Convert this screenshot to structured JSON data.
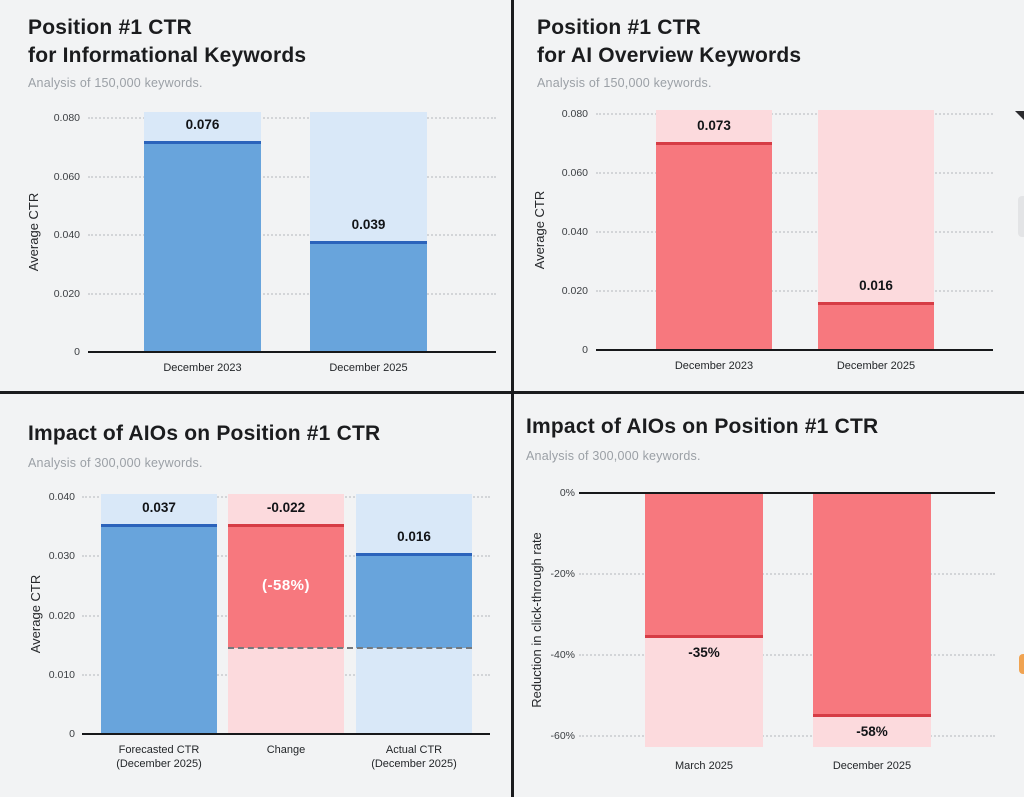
{
  "page": {
    "background": "#f2f3f4",
    "divider_color": "#1a1b1d"
  },
  "palette": {
    "blue_fill": "#68a4dc",
    "blue_dark": "#2b63bb",
    "blue_light": "#d9e8f8",
    "red_fill": "#f7787e",
    "red_dark": "#d63c45",
    "red_light": "#fcdadd",
    "grid": "#d3d5d8",
    "dash": "#75797d",
    "axis": "#17181a"
  },
  "edge_elements": {
    "arrow_icon_color": "#2b2b2e",
    "gray_tab_color": "#e3e4e6",
    "orange_fragment_color": "#f0a351"
  },
  "chart_data": [
    {
      "id": "informational-ctr",
      "type": "bar",
      "title": "Position #1 CTR\nfor Informational Keywords",
      "subtitle": "Analysis of 150,000 keywords.",
      "ylabel": "Average CTR",
      "yticks": [
        "0.080",
        "0.060",
        "0.040",
        "0.020",
        "0"
      ],
      "ytick_values": [
        0.08,
        0.06,
        0.04,
        0.02,
        0
      ],
      "ylim": [
        0,
        0.082
      ],
      "grid": "dotted",
      "legend": "none",
      "categories": [
        "December 2023",
        "December 2025"
      ],
      "values": [
        0.076,
        0.039
      ],
      "labels": [
        "0.076",
        "0.039"
      ],
      "bar_draw": [
        0.072,
        0.038
      ],
      "color": "blue"
    },
    {
      "id": "ai-overview-ctr",
      "type": "bar",
      "title": "Position #1 CTR\nfor AI Overview Keywords",
      "subtitle": "Analysis of 150,000 keywords.",
      "ylabel": "Average CTR",
      "yticks": [
        "0.080",
        "0.060",
        "0.040",
        "0.020",
        "0"
      ],
      "ytick_values": [
        0.08,
        0.06,
        0.04,
        0.02,
        0
      ],
      "ylim": [
        0,
        0.082
      ],
      "grid": "dotted",
      "legend": "none",
      "categories": [
        "December 2023",
        "December 2025"
      ],
      "values": [
        0.073,
        0.016
      ],
      "labels": [
        "0.073",
        "0.016"
      ],
      "bar_draw": [
        0.0705,
        0.0163
      ],
      "color": "red"
    },
    {
      "id": "aio-impact-waterfall",
      "type": "waterfall",
      "title": "Impact of AIOs on Position #1 CTR",
      "subtitle": "Analysis of 300,000 keywords.",
      "ylabel": "Average CTR",
      "yticks": [
        "0.040",
        "0.030",
        "0.020",
        "0.010",
        "0"
      ],
      "ytick_values": [
        0.04,
        0.03,
        0.02,
        0.01,
        0
      ],
      "ylim": [
        0,
        0.0405
      ],
      "grid": "dotted",
      "legend": "none",
      "categories": [
        "Forecasted CTR\n(December 2025)",
        "Change",
        "Actual CTR\n(December 2025)"
      ],
      "values": [
        0.037,
        -0.022,
        0.016
      ],
      "labels": [
        "0.037",
        "-0.022",
        "0.016"
      ],
      "inner_label": "(-58%)",
      "baseline_dash": 0.0145,
      "bars": [
        {
          "from": 0,
          "to": 0.0355,
          "color": "blue"
        },
        {
          "from": 0.0145,
          "to": 0.0355,
          "color": "red"
        },
        {
          "from": 0.0145,
          "to": 0.0305,
          "color": "blue"
        }
      ]
    },
    {
      "id": "aio-impact-reduction",
      "type": "negative-bar",
      "title": "Impact of AIOs on Position #1 CTR",
      "subtitle": "Analysis of 300,000 keywords.",
      "ylabel": "Reduction in click-through rate",
      "yticks": [
        "0%",
        "-20%",
        "-40%",
        "-60%"
      ],
      "ytick_values": [
        0,
        -20,
        -40,
        -60
      ],
      "ylim": [
        0,
        -62.7
      ],
      "grid": "dotted",
      "legend": "none",
      "categories": [
        "March 2025",
        "December 2025"
      ],
      "values": [
        -35,
        -58
      ],
      "labels": [
        "-35%",
        "-58%"
      ],
      "bar_draw": [
        -35.8,
        -55.3
      ],
      "color": "red"
    }
  ]
}
